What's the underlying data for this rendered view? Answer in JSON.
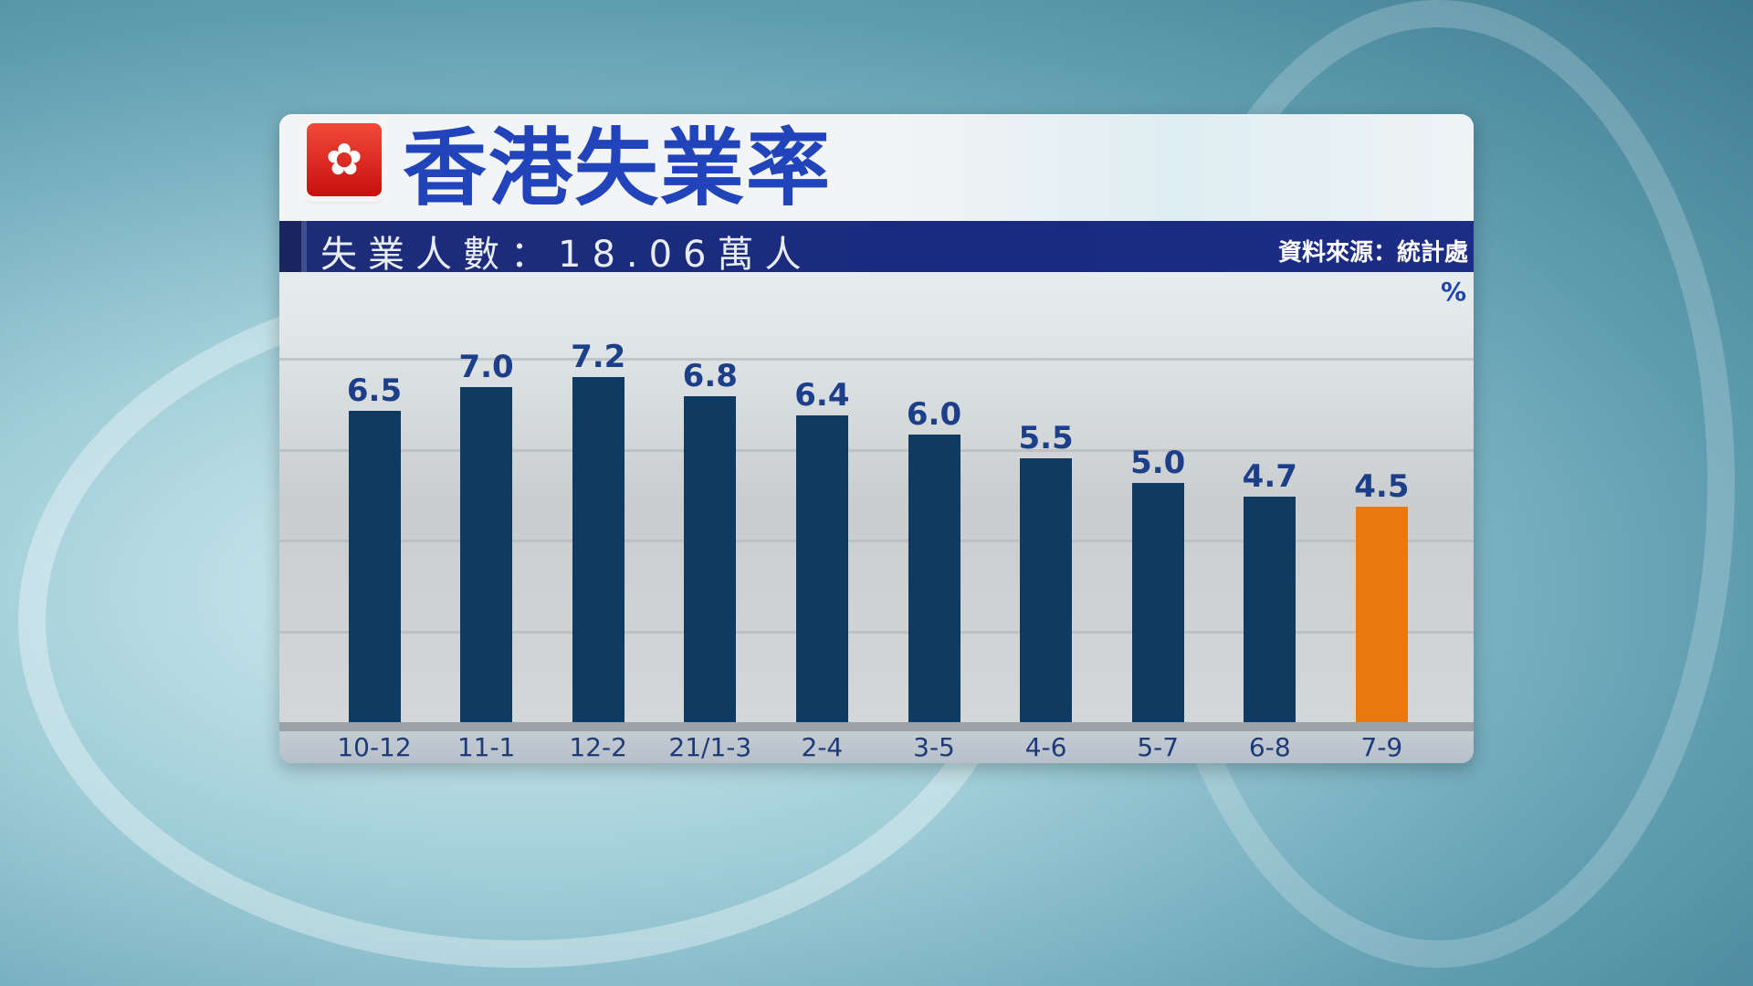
{
  "header": {
    "title": "香港失業率",
    "subtitle": "失業人數：18.06萬人",
    "source": "資料來源：統計處",
    "flag_icon": "bauhinia-flag-icon"
  },
  "chart_data": {
    "type": "bar",
    "title": "香港失業率",
    "ylabel": "%",
    "categories": [
      "10-12",
      "11-1",
      "12-2",
      "21/1-3",
      "2-4",
      "3-5",
      "4-6",
      "5-7",
      "6-8",
      "7-9"
    ],
    "values": [
      6.5,
      7.0,
      7.2,
      6.8,
      6.4,
      6.0,
      5.5,
      5.0,
      4.7,
      4.5
    ],
    "value_labels": [
      "6.5",
      "7.0",
      "7.2",
      "6.8",
      "6.4",
      "6.0",
      "5.5",
      "5.0",
      "4.7",
      "4.5"
    ],
    "colors": {
      "default": "#0f3a62",
      "highlight": "#e8780f"
    },
    "highlight_index": 9,
    "ylim": [
      0,
      8.5
    ],
    "grid": true
  }
}
